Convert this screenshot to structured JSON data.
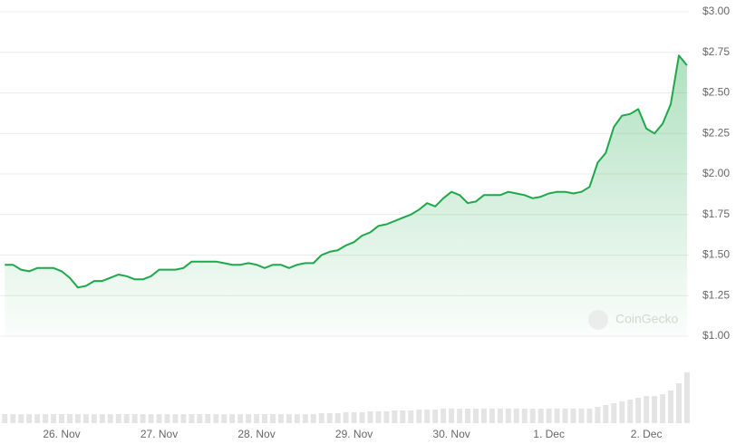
{
  "chart_data": {
    "type": "line",
    "watermark": "CoinGecko",
    "color": "#1ea84a",
    "grid": true,
    "categories": [
      null,
      null,
      null,
      null,
      null,
      null,
      null,
      "26. Nov",
      null,
      null,
      null,
      null,
      null,
      null,
      null,
      null,
      null,
      null,
      null,
      "27. Nov",
      null,
      null,
      null,
      null,
      null,
      null,
      null,
      null,
      null,
      null,
      null,
      "28. Nov",
      null,
      null,
      null,
      null,
      null,
      null,
      null,
      null,
      null,
      null,
      null,
      "29. Nov",
      null,
      null,
      null,
      null,
      null,
      null,
      null,
      null,
      null,
      null,
      null,
      "30. Nov",
      null,
      null,
      null,
      null,
      null,
      null,
      null,
      null,
      null,
      null,
      null,
      "1. Dec",
      null,
      null,
      null,
      null,
      null,
      null,
      null,
      null,
      null,
      null,
      null,
      "2. Dec",
      null,
      null,
      null,
      null,
      null
    ],
    "values": [
      1.44,
      1.44,
      1.41,
      1.4,
      1.42,
      1.42,
      1.42,
      1.4,
      1.36,
      1.3,
      1.31,
      1.34,
      1.34,
      1.36,
      1.38,
      1.37,
      1.35,
      1.35,
      1.37,
      1.41,
      1.41,
      1.41,
      1.42,
      1.46,
      1.46,
      1.46,
      1.46,
      1.45,
      1.44,
      1.44,
      1.45,
      1.44,
      1.42,
      1.44,
      1.44,
      1.42,
      1.44,
      1.45,
      1.45,
      1.5,
      1.52,
      1.53,
      1.56,
      1.58,
      1.62,
      1.64,
      1.68,
      1.69,
      1.71,
      1.73,
      1.75,
      1.78,
      1.82,
      1.8,
      1.85,
      1.89,
      1.87,
      1.82,
      1.83,
      1.87,
      1.87,
      1.87,
      1.89,
      1.88,
      1.87,
      1.85,
      1.86,
      1.88,
      1.89,
      1.89,
      1.88,
      1.89,
      1.92,
      2.07,
      2.13,
      2.29,
      2.36,
      2.37,
      2.4,
      2.28,
      2.25,
      2.31,
      2.43,
      2.73,
      2.67
    ],
    "volume": [
      10,
      10,
      10,
      10,
      10,
      10,
      10,
      10,
      10,
      10,
      10,
      10,
      10,
      10,
      10,
      10,
      10,
      10,
      10,
      10,
      10,
      10,
      10,
      10,
      10,
      10,
      10,
      10,
      10,
      10,
      10,
      10,
      10,
      10,
      10,
      10,
      10,
      10,
      10,
      11,
      11,
      11,
      12,
      12,
      12,
      13,
      13,
      13,
      14,
      14,
      14,
      15,
      15,
      15,
      16,
      16,
      16,
      16,
      16,
      16,
      16,
      16,
      16,
      16,
      16,
      16,
      16,
      16,
      16,
      16,
      16,
      16,
      16,
      18,
      20,
      22,
      24,
      26,
      28,
      30,
      30,
      32,
      36,
      44,
      56
    ],
    "ylim": [
      1,
      3
    ],
    "yticks": [
      {
        "value": 1,
        "label": "$1.00"
      },
      {
        "value": 1.25,
        "label": "$1.25"
      },
      {
        "value": 1.5,
        "label": "$1.50"
      },
      {
        "value": 1.75,
        "label": "$1.75"
      },
      {
        "value": 2,
        "label": "$2.00"
      },
      {
        "value": 2.25,
        "label": "$2.25"
      },
      {
        "value": 2.5,
        "label": "$2.50"
      },
      {
        "value": 2.75,
        "label": "$2.75"
      },
      {
        "value": 3,
        "label": "$3.00"
      }
    ]
  }
}
